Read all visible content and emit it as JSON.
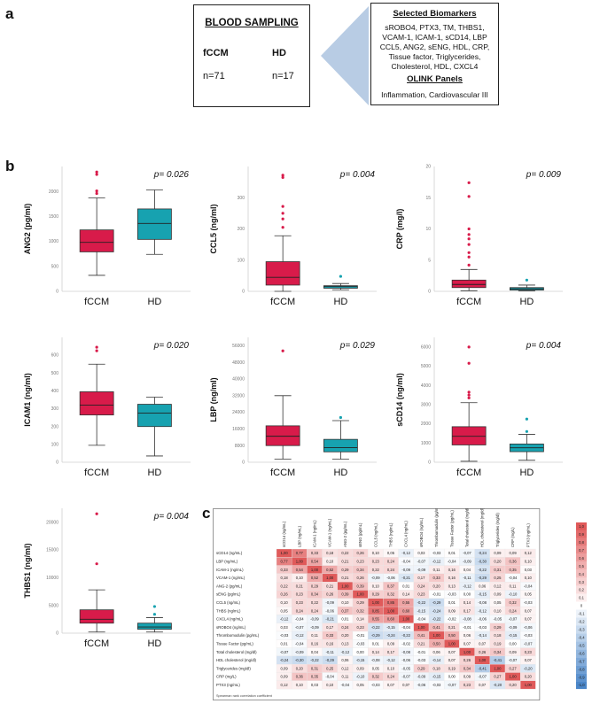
{
  "panel_a": {
    "letter": "a",
    "blood_sampling": {
      "title": "BLOOD SAMPLING",
      "group1_name": "fCCM",
      "group1_n": "n=71",
      "group2_name": "HD",
      "group2_n": "n=17"
    },
    "selected_biomarkers": {
      "title": "Selected Biomarkers",
      "list": "sROBO4, PTX3, TM, THBS1, VCAM-1, ICAM-1, sCD14, LBP CCL5, ANG2, sENG, HDL, CRP, Tissue factor, Triglycerides, Cholesterol, HDL, CXCL4",
      "olink_title": "OLINK Panels",
      "olink_list": "Inflammation, Cardiovascular III"
    }
  },
  "panel_b": {
    "letter": "b",
    "colors": {
      "fCCM": "#d81b4a",
      "HD": "#17a2b0"
    }
  },
  "panel_c": {
    "letter": "c",
    "footnote": "Spearman rank correlation coefficient"
  },
  "chart_data": [
    {
      "type": "box",
      "ylabel": "ANG2 (pg/ml)",
      "pvalue": "p= 0.026",
      "categories": [
        "fCCM",
        "HD"
      ],
      "ylim": [
        0,
        2500
      ],
      "yticks": [
        0,
        500,
        1000,
        1500,
        2000
      ],
      "boxes": [
        {
          "name": "fCCM",
          "whisker_low": 320,
          "q1": 790,
          "median": 980,
          "q3": 1230,
          "whisker_high": 1870,
          "outliers": [
            1960,
            2010,
            2340,
            2390
          ]
        },
        {
          "name": "HD",
          "whisker_low": 740,
          "q1": 1040,
          "median": 1360,
          "q3": 1650,
          "whisker_high": 2030,
          "outliers": []
        }
      ]
    },
    {
      "type": "box",
      "ylabel": "CCL5 (ng/ml)",
      "pvalue": "p= 0.004",
      "categories": [
        "fCCM",
        "HD"
      ],
      "ylim": [
        0,
        400
      ],
      "yticks": [
        0,
        100,
        200,
        300
      ],
      "boxes": [
        {
          "name": "fCCM",
          "whisker_low": 0,
          "q1": 20,
          "median": 45,
          "q3": 95,
          "whisker_high": 178,
          "outliers": [
            205,
            232,
            250,
            272,
            365,
            372
          ]
        },
        {
          "name": "HD",
          "whisker_low": 5,
          "q1": 10,
          "median": 15,
          "q3": 18,
          "whisker_high": 25,
          "outliers": [
            48
          ]
        }
      ]
    },
    {
      "type": "box",
      "ylabel": "CRP (mg/l)",
      "pvalue": "p= 0.009",
      "categories": [
        "fCCM",
        "HD"
      ],
      "ylim": [
        0,
        20
      ],
      "yticks": [
        0,
        5,
        10,
        15,
        20
      ],
      "boxes": [
        {
          "name": "fCCM",
          "whisker_low": 0.1,
          "q1": 0.6,
          "median": 1.1,
          "q3": 1.8,
          "whisker_high": 3.5,
          "outliers": [
            4.2,
            5.5,
            6.2,
            7.5,
            8.4,
            9.1,
            10.0,
            15.2,
            17.4
          ]
        },
        {
          "name": "HD",
          "whisker_low": 0.1,
          "q1": 0.2,
          "median": 0.4,
          "q3": 0.6,
          "whisker_high": 1.0,
          "outliers": [
            1.8
          ]
        }
      ]
    },
    {
      "type": "box",
      "ylabel": "ICAM1 (ng/ml)",
      "pvalue": "p= 0.020",
      "categories": [
        "fCCM",
        "HD"
      ],
      "ylim": [
        0,
        700
      ],
      "yticks": [
        0,
        100,
        200,
        300,
        400,
        500,
        600
      ],
      "boxes": [
        {
          "name": "fCCM",
          "whisker_low": 95,
          "q1": 265,
          "median": 320,
          "q3": 395,
          "whisker_high": 550,
          "outliers": [
            625,
            645
          ]
        },
        {
          "name": "HD",
          "whisker_low": 35,
          "q1": 200,
          "median": 275,
          "q3": 325,
          "whisker_high": 365,
          "outliers": []
        }
      ]
    },
    {
      "type": "box",
      "ylabel": "LBP (ng/ml)",
      "pvalue": "p= 0.029",
      "categories": [
        "fCCM",
        "HD"
      ],
      "ylim": [
        0,
        60000
      ],
      "yticks": [
        0,
        8000,
        16000,
        24000,
        32000,
        40000,
        48000,
        56000
      ],
      "boxes": [
        {
          "name": "fCCM",
          "whisker_low": 1500,
          "q1": 8000,
          "median": 12500,
          "q3": 17500,
          "whisker_high": 32000,
          "outliers": [
            53500
          ]
        },
        {
          "name": "HD",
          "whisker_low": 1500,
          "q1": 5000,
          "median": 7000,
          "q3": 11000,
          "whisker_high": 20000,
          "outliers": [
            21500
          ]
        }
      ]
    },
    {
      "type": "box",
      "ylabel": "sCD14 (ng/ml)",
      "pvalue": "p= 0.004",
      "categories": [
        "fCCM",
        "HD"
      ],
      "ylim": [
        0,
        6500
      ],
      "yticks": [
        0,
        1000,
        2000,
        3000,
        4000,
        5000,
        6000
      ],
      "boxes": [
        {
          "name": "fCCM",
          "whisker_low": 50,
          "q1": 900,
          "median": 1350,
          "q3": 1850,
          "whisker_high": 3100,
          "outliers": [
            3350,
            3500,
            3650,
            5150,
            6000
          ]
        },
        {
          "name": "HD",
          "whisker_low": 100,
          "q1": 550,
          "median": 750,
          "q3": 950,
          "whisker_high": 1450,
          "outliers": [
            1600,
            2250
          ]
        }
      ]
    },
    {
      "type": "box",
      "ylabel": "THBS1 (ng/ml)",
      "pvalue": "p= 0.004",
      "categories": [
        "fCCM",
        "HD"
      ],
      "ylim": [
        0,
        22500
      ],
      "yticks": [
        0,
        5000,
        10000,
        15000,
        20000
      ],
      "boxes": [
        {
          "name": "fCCM",
          "whisker_low": 200,
          "q1": 1800,
          "median": 2500,
          "q3": 4200,
          "whisker_high": 7800,
          "outliers": [
            12500,
            21500
          ]
        },
        {
          "name": "HD",
          "whisker_low": 200,
          "q1": 700,
          "median": 1100,
          "q3": 1800,
          "whisker_high": 2800,
          "outliers": [
            3400,
            4800
          ]
        }
      ]
    },
    {
      "type": "heatmap",
      "labels": [
        "sCD14 (ng/mL)",
        "LBP (ng/mL)",
        "ICAM-1 (ng/mL)",
        "VCAM-1 (ng/mL)",
        "ANG-2 (pg/mL)",
        "sENG (pg/mL)",
        "CCL5 (ng/mL)",
        "THBS (ng/mL)",
        "CXCL4 (ng/mL)",
        "sROBO4 (ng/mL)",
        "Thrombomodulin (pg/mL)",
        "Tissue Factor (pg/mL)",
        "Total cholesterol (mg/dl)",
        "HDL cholesterol (mg/dl)",
        "Triglycerides (mg/dl)",
        "CRP (mg/L)",
        "PTX3 (ng/mL)"
      ],
      "values": [
        [
          1.0,
          0.77,
          0.33,
          0.18,
          0.22,
          0.26,
          0.1,
          0.05,
          -0.12,
          0.03,
          -0.03,
          0.01,
          -0.07,
          -0.24,
          0.09,
          0.09,
          0.12
        ],
        [
          0.77,
          1.0,
          0.54,
          0.1,
          0.21,
          0.23,
          0.23,
          0.24,
          -0.04,
          -0.07,
          -0.12,
          -0.04,
          -0.09,
          -0.3,
          0.2,
          0.36,
          0.1
        ],
        [
          0.33,
          0.54,
          1.0,
          0.52,
          0.29,
          0.34,
          0.22,
          0.24,
          -0.09,
          -0.09,
          0.11,
          0.16,
          0.04,
          -0.22,
          0.31,
          0.35,
          0.03
        ],
        [
          0.18,
          0.1,
          0.52,
          1.0,
          0.21,
          0.26,
          -0.09,
          -0.06,
          -0.21,
          0.17,
          0.33,
          0.16,
          -0.11,
          -0.29,
          0.25,
          -0.04,
          0.1
        ],
        [
          0.22,
          0.21,
          0.29,
          0.21,
          1.0,
          0.39,
          0.1,
          0.37,
          0.01,
          0.24,
          0.2,
          0.13,
          -0.12,
          0.06,
          0.12,
          0.11,
          -0.04
        ],
        [
          0.26,
          0.23,
          0.34,
          0.26,
          0.39,
          1.0,
          0.29,
          0.32,
          0.14,
          0.23,
          -0.01,
          -0.03,
          0.0,
          -0.15,
          0.09,
          -0.1,
          0.05
        ],
        [
          0.1,
          0.23,
          0.22,
          -0.09,
          0.1,
          0.29,
          1.0,
          0.85,
          0.55,
          -0.22,
          -0.29,
          0.01,
          0.14,
          -0.08,
          0.05,
          0.32,
          -0.03
        ],
        [
          0.05,
          0.24,
          0.24,
          -0.06,
          0.37,
          0.32,
          0.85,
          1.0,
          0.6,
          -0.15,
          -0.24,
          0.09,
          0.17,
          -0.12,
          0.1,
          0.24,
          0.07
        ],
        [
          -0.12,
          -0.04,
          -0.09,
          -0.21,
          0.01,
          0.14,
          0.55,
          0.6,
          1.0,
          -0.04,
          -0.22,
          -0.02,
          -0.08,
          -0.06,
          -0.05,
          -0.07,
          0.07
        ],
        [
          0.03,
          -0.07,
          -0.09,
          0.17,
          0.24,
          0.23,
          -0.22,
          -0.15,
          -0.04,
          1.0,
          0.41,
          0.21,
          -0.01,
          -0.03,
          0.29,
          -0.09,
          -0.06
        ],
        [
          -0.03,
          -0.12,
          0.11,
          0.33,
          0.2,
          -0.01,
          -0.29,
          -0.24,
          -0.22,
          0.41,
          1.0,
          0.5,
          0.06,
          -0.14,
          0.18,
          -0.15,
          -0.03
        ],
        [
          0.01,
          -0.04,
          0.16,
          0.16,
          0.13,
          -0.03,
          0.01,
          0.09,
          -0.02,
          0.21,
          0.5,
          1.0,
          0.07,
          0.07,
          0.19,
          0.0,
          -0.07
        ],
        [
          -0.07,
          -0.09,
          0.04,
          -0.11,
          -0.12,
          0.0,
          0.14,
          0.17,
          -0.08,
          -0.01,
          0.06,
          0.07,
          1.0,
          0.26,
          0.34,
          0.09,
          0.23
        ],
        [
          -0.24,
          -0.3,
          -0.22,
          -0.29,
          0.06,
          -0.15,
          -0.08,
          -0.12,
          -0.06,
          -0.03,
          -0.14,
          0.07,
          0.26,
          1.0,
          -0.41,
          -0.07,
          0.07
        ],
        [
          0.09,
          0.2,
          0.31,
          0.25,
          0.12,
          0.09,
          0.05,
          0.1,
          -0.05,
          0.29,
          0.18,
          0.19,
          0.34,
          -0.41,
          1.0,
          0.27,
          -0.2
        ],
        [
          0.09,
          0.36,
          0.35,
          -0.04,
          0.11,
          -0.1,
          0.32,
          0.24,
          -0.07,
          -0.09,
          -0.15,
          0.0,
          0.09,
          -0.07,
          0.27,
          1.0,
          0.2
        ],
        [
          0.12,
          0.1,
          0.03,
          0.1,
          -0.04,
          0.05,
          -0.03,
          0.07,
          0.07,
          -0.06,
          -0.03,
          -0.07,
          0.23,
          0.07,
          -0.2,
          0.2,
          1.0
        ]
      ],
      "color_scale": {
        "min": -1.0,
        "max": 1.0,
        "low_color": "#4a86c8",
        "high_color": "#e05a5a"
      },
      "legend_ticks": [
        "1,0",
        "0,9",
        "0,8",
        "0,7",
        "0,6",
        "0,5",
        "0,4",
        "0,3",
        "0,2",
        "0,1",
        "0",
        "-0,1",
        "-0,2",
        "-0,3",
        "-0,4",
        "-0,5",
        "-0,6",
        "-0,7",
        "-0,8",
        "-0,9",
        "-1,0"
      ]
    }
  ]
}
